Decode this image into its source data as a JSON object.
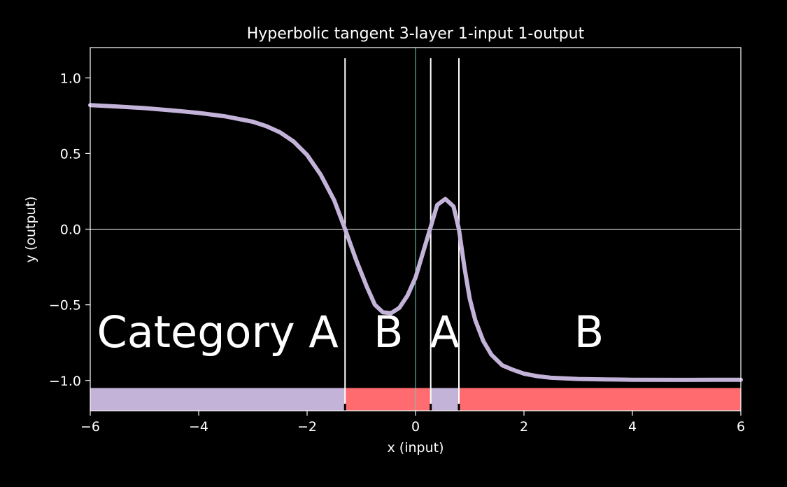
{
  "chart_data": {
    "type": "line",
    "title": "Hyperbolic tangent 3-layer 1-input 1-output",
    "xlabel": "x (input)",
    "ylabel": "y (output)",
    "xlim": [
      -6,
      6
    ],
    "ylim": [
      -1.2,
      1.2
    ],
    "xticks": [
      -6,
      -4,
      -2,
      0,
      2,
      4,
      6
    ],
    "xtick_labels": [
      "−6",
      "−4",
      "−2",
      "0",
      "2",
      "4",
      "6"
    ],
    "yticks": [
      -1.0,
      -0.5,
      0.0,
      0.5,
      1.0
    ],
    "ytick_labels": [
      "−1.0",
      "−0.5",
      "0.0",
      "0.5",
      "1.0"
    ],
    "grid": false,
    "series": [
      {
        "color": "#c3b3d9",
        "x": [
          -6.0,
          -5.5,
          -5.0,
          -4.5,
          -4.0,
          -3.5,
          -3.0,
          -2.75,
          -2.5,
          -2.25,
          -2.0,
          -1.75,
          -1.5,
          -1.3,
          -1.1,
          -0.9,
          -0.75,
          -0.6,
          -0.45,
          -0.3,
          -0.15,
          0.0,
          0.15,
          0.3,
          0.4,
          0.55,
          0.7,
          0.8,
          0.9,
          1.0,
          1.1,
          1.25,
          1.4,
          1.6,
          1.8,
          2.0,
          2.25,
          2.5,
          3.0,
          3.5,
          4.0,
          5.0,
          6.0
        ],
        "y": [
          0.82,
          0.81,
          0.8,
          0.785,
          0.768,
          0.745,
          0.71,
          0.68,
          0.64,
          0.58,
          0.49,
          0.36,
          0.19,
          0.0,
          -0.2,
          -0.38,
          -0.5,
          -0.55,
          -0.555,
          -0.52,
          -0.44,
          -0.32,
          -0.14,
          0.04,
          0.16,
          0.2,
          0.15,
          0.0,
          -0.25,
          -0.46,
          -0.6,
          -0.74,
          -0.83,
          -0.9,
          -0.93,
          -0.955,
          -0.972,
          -0.982,
          -0.99,
          -0.993,
          -0.995,
          -0.996,
          -0.995
        ]
      }
    ],
    "hlines": [
      {
        "y": 0,
        "color": "#ffffff"
      }
    ],
    "vlines": [
      {
        "x": 0,
        "color": "#66d1bb"
      },
      {
        "x": -1.3,
        "color": "#ffffff"
      },
      {
        "x": 0.28,
        "color": "#ffffff"
      },
      {
        "x": 0.8,
        "color": "#ffffff"
      }
    ],
    "regions": [
      {
        "x0": -6,
        "x1": -1.3,
        "color": "#c3b3d9",
        "label": "Category A",
        "label_x": -3.65
      },
      {
        "x0": -1.3,
        "x1": 0.28,
        "color": "#ff6b6f",
        "label": "B",
        "label_x": -0.5
      },
      {
        "x0": 0.28,
        "x1": 0.8,
        "color": "#c3b3d9",
        "label": "A",
        "label_x": 0.54
      },
      {
        "x0": 0.8,
        "x1": 6,
        "color": "#ff6b6f",
        "label": "B",
        "label_x": 3.2
      }
    ],
    "region_band_y": [
      -1.2,
      -1.05
    ],
    "region_label_y": -0.78
  }
}
